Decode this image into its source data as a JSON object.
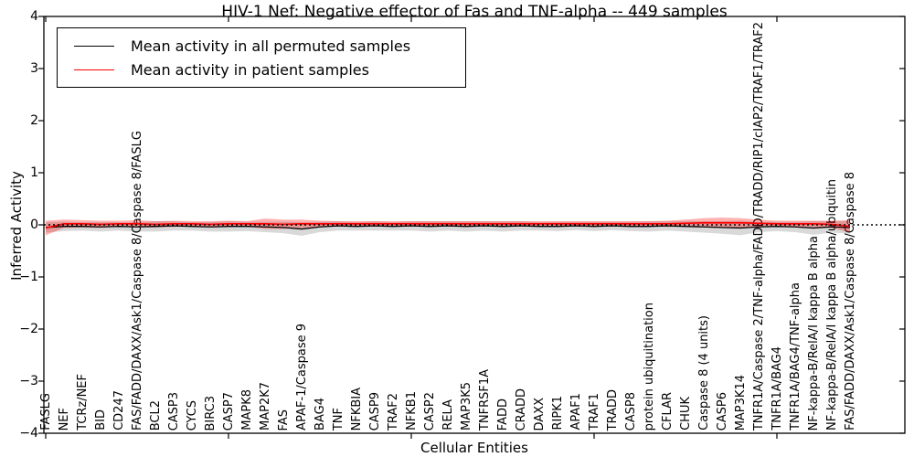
{
  "title": "HIV-1 Nef: Negative effector of Fas and TNF-alpha -- 449 samples",
  "axes": {
    "ylabel": "Inferred Activity",
    "xlabel": "Cellular Entities",
    "yticks": [
      4,
      3,
      2,
      1,
      0,
      -1,
      -2,
      -3,
      -4
    ],
    "ylim": [
      -4,
      4
    ]
  },
  "legend": {
    "items": [
      {
        "label": "Mean activity in all permuted samples",
        "color": "#000000"
      },
      {
        "label": "Mean activity in patient samples",
        "color": "#ff0000"
      }
    ],
    "position": "upper left"
  },
  "chart_data": {
    "type": "line",
    "title": "HIV-1 Nef: Negative effector of Fas and TNF-alpha -- 449 samples",
    "xlabel": "Cellular Entities",
    "ylabel": "Inferred Activity",
    "ylim": [
      -4,
      4
    ],
    "grid": false,
    "legend_position": "upper left",
    "xtick_indices": [
      0,
      10,
      20,
      30,
      40
    ],
    "categories": [
      "FASLG",
      "NEF",
      "TCRz/NEF",
      "BID",
      "CD247",
      "FAS/FADD/DAXX/Ask1/Caspase 8/Caspase 8/FASLG",
      "BCL2",
      "CASP3",
      "CYCS",
      "BIRC3",
      "CASP7",
      "MAPK8",
      "MAP2K7",
      "FAS",
      "APAF-1/Caspase 9",
      "BAG4",
      "TNF",
      "NFKBIA",
      "CASP9",
      "TRAF2",
      "NFKB1",
      "CASP2",
      "RELA",
      "MAP3K5",
      "TNFRSF1A",
      "FADD",
      "CRADD",
      "DAXX",
      "RIPK1",
      "APAF1",
      "TRAF1",
      "TRADD",
      "CASP8",
      "protein ubiquitination",
      "CFLAR",
      "CHUK",
      "Caspase 8 (4 units)",
      "CASP6",
      "MAP3K14",
      "TNFR1A/Caspase 2/TNF-alpha/FADD/TRADD/RIP1/cIAP2/TRAF1/TRAF2",
      "TNFR1A/BAG4",
      "TNFR1A/BAG4/TNF-alpha",
      "NF-kappa-B/RelA/I kappa B alpha",
      "NF-kappa-B/RelA/I kappa B alpha/ubiquitin",
      "FAS/FADD/DAXX/Ask1/Caspase 8/Caspase 8"
    ],
    "series": [
      {
        "name": "Mean activity in all permuted samples",
        "color": "#000000",
        "band_color": "rgba(0,0,0,0.15)",
        "style": "solid",
        "values": [
          -0.05,
          -0.03,
          -0.03,
          -0.04,
          -0.03,
          -0.04,
          -0.03,
          -0.02,
          -0.03,
          -0.04,
          -0.03,
          -0.03,
          -0.04,
          -0.05,
          -0.08,
          -0.04,
          -0.02,
          -0.03,
          -0.02,
          -0.03,
          -0.02,
          -0.03,
          -0.02,
          -0.03,
          -0.02,
          -0.03,
          -0.02,
          -0.03,
          -0.03,
          -0.02,
          -0.03,
          -0.02,
          -0.03,
          -0.03,
          -0.02,
          -0.03,
          -0.04,
          -0.05,
          -0.06,
          -0.04,
          -0.03,
          -0.04,
          -0.06,
          -0.04,
          -0.05
        ],
        "band": [
          0.1,
          0.09,
          0.08,
          0.09,
          0.08,
          0.09,
          0.1,
          0.09,
          0.08,
          0.09,
          0.1,
          0.09,
          0.1,
          0.11,
          0.13,
          0.1,
          0.09,
          0.08,
          0.09,
          0.08,
          0.09,
          0.1,
          0.09,
          0.1,
          0.09,
          0.1,
          0.09,
          0.08,
          0.09,
          0.08,
          0.09,
          0.08,
          0.09,
          0.1,
          0.09,
          0.1,
          0.11,
          0.12,
          0.14,
          0.1,
          0.09,
          0.1,
          0.13,
          0.11,
          0.12
        ]
      },
      {
        "name": "Mean activity in patient samples",
        "color": "#ff0000",
        "band_color": "rgba(255,0,0,0.30)",
        "style": "solid",
        "values": [
          -0.06,
          0.02,
          0.02,
          0.01,
          0.02,
          0.02,
          0.01,
          0.02,
          0.02,
          0.01,
          0.02,
          0.02,
          0.02,
          0.01,
          0.02,
          0.02,
          0.02,
          0.02,
          0.02,
          0.02,
          0.02,
          0.02,
          0.02,
          0.02,
          0.02,
          0.02,
          0.02,
          0.02,
          0.02,
          0.02,
          0.02,
          0.02,
          0.02,
          0.02,
          0.02,
          0.03,
          0.04,
          0.04,
          0.04,
          0.03,
          0.02,
          0.02,
          0.02,
          0.01,
          -0.03
        ],
        "band": [
          0.14,
          0.08,
          0.07,
          0.07,
          0.06,
          0.07,
          0.06,
          0.06,
          0.05,
          0.06,
          0.06,
          0.05,
          0.1,
          0.09,
          0.08,
          0.06,
          0.05,
          0.05,
          0.05,
          0.05,
          0.05,
          0.05,
          0.05,
          0.05,
          0.05,
          0.05,
          0.05,
          0.05,
          0.05,
          0.05,
          0.05,
          0.05,
          0.05,
          0.05,
          0.06,
          0.07,
          0.09,
          0.1,
          0.09,
          0.07,
          0.06,
          0.06,
          0.06,
          0.07,
          0.12
        ]
      }
    ],
    "reference_line": {
      "y": 0,
      "style": "dotted",
      "color": "#000000"
    }
  }
}
